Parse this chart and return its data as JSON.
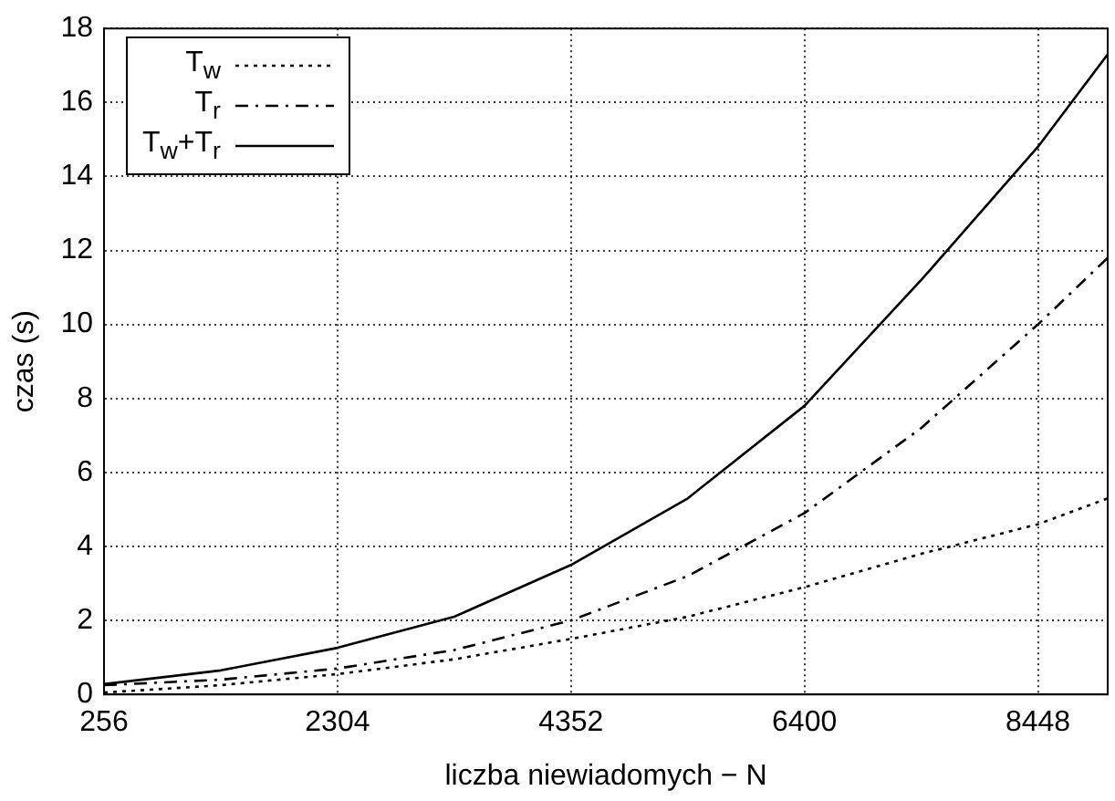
{
  "chart_data": {
    "type": "line",
    "xlabel": "liczba niewiadomych − N",
    "ylabel": "czas (s)",
    "x": [
      256,
      1280,
      2304,
      3328,
      4352,
      5376,
      6400,
      7424,
      8448,
      9060
    ],
    "series": [
      {
        "name": "T$_{w}$",
        "color": "#000000",
        "line_style": "dotted",
        "values": [
          0.05,
          0.25,
          0.55,
          0.95,
          1.5,
          2.1,
          2.9,
          3.8,
          4.6,
          5.3
        ]
      },
      {
        "name": "T$_{r}$",
        "color": "#000000",
        "line_style": "dashed",
        "values": [
          0.25,
          0.4,
          0.7,
          1.2,
          2.0,
          3.2,
          4.9,
          7.2,
          10.0,
          11.8
        ]
      },
      {
        "name": "T$_{w}$+T$_{r}$",
        "color": "#000000",
        "line_style": "solid",
        "values": [
          0.28,
          0.65,
          1.26,
          2.1,
          3.5,
          5.3,
          7.8,
          11.2,
          14.8,
          17.3
        ]
      }
    ],
    "xlim": [
      256,
      9060
    ],
    "xticks": [
      256,
      2304,
      4352,
      6400,
      8448
    ],
    "ylim": [
      0,
      18
    ],
    "yticks": [
      0,
      2,
      4,
      6,
      8,
      10,
      12,
      14,
      16,
      18
    ],
    "grid": true,
    "legend": "top left",
    "marker": "none"
  }
}
